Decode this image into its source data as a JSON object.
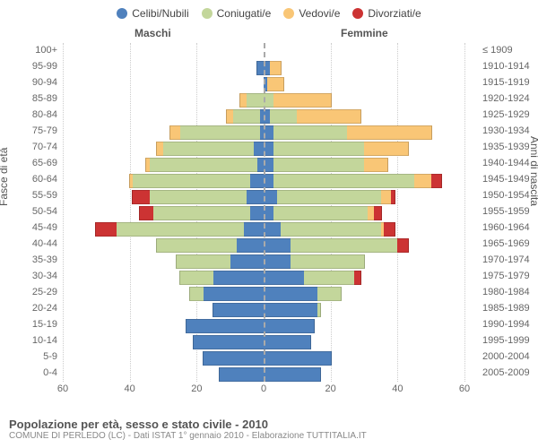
{
  "legend": [
    {
      "label": "Celibi/Nubili",
      "color": "#4f81bd"
    },
    {
      "label": "Coniugati/e",
      "color": "#c3d69b"
    },
    {
      "label": "Vedovi/e",
      "color": "#f9c676"
    },
    {
      "label": "Divorziati/e",
      "color": "#cc3333"
    }
  ],
  "headers": {
    "male": "Maschi",
    "female": "Femmine"
  },
  "axis": {
    "left_label": "Fasce di età",
    "right_label": "Anni di nascita",
    "xmax": 60,
    "ticks": [
      60,
      40,
      20,
      0,
      20,
      40,
      60
    ]
  },
  "title": "Popolazione per età, sesso e stato civile - 2010",
  "subtitle": "COMUNE DI PERLEDO (LC) - Dati ISTAT 1° gennaio 2010 - Elaborazione TUTTITALIA.IT",
  "colors": {
    "single": "#4f81bd",
    "married": "#c3d69b",
    "widowed": "#f9c676",
    "divorced": "#cc3333",
    "grid": "#cccccc",
    "center": "#aaaaaa",
    "text": "#666666"
  },
  "rows": [
    {
      "age": "100+",
      "birth": "≤ 1909",
      "m": [
        0,
        0,
        0,
        0
      ],
      "f": [
        0,
        0,
        0,
        0
      ]
    },
    {
      "age": "95-99",
      "birth": "1910-1914",
      "m": [
        2,
        0,
        0,
        0
      ],
      "f": [
        2,
        0,
        3,
        0
      ]
    },
    {
      "age": "90-94",
      "birth": "1915-1919",
      "m": [
        0,
        0,
        0,
        0
      ],
      "f": [
        1,
        0,
        5,
        0
      ]
    },
    {
      "age": "85-89",
      "birth": "1920-1924",
      "m": [
        0,
        5,
        2,
        0
      ],
      "f": [
        0,
        3,
        17,
        0
      ]
    },
    {
      "age": "80-84",
      "birth": "1925-1929",
      "m": [
        1,
        8,
        2,
        0
      ],
      "f": [
        2,
        8,
        19,
        0
      ]
    },
    {
      "age": "75-79",
      "birth": "1930-1934",
      "m": [
        1,
        24,
        3,
        0
      ],
      "f": [
        3,
        22,
        25,
        0
      ]
    },
    {
      "age": "70-74",
      "birth": "1935-1939",
      "m": [
        3,
        27,
        2,
        0
      ],
      "f": [
        3,
        27,
        13,
        0
      ]
    },
    {
      "age": "65-69",
      "birth": "1940-1944",
      "m": [
        2,
        32,
        1,
        0
      ],
      "f": [
        3,
        27,
        7,
        0
      ]
    },
    {
      "age": "60-64",
      "birth": "1945-1949",
      "m": [
        4,
        35,
        1,
        0
      ],
      "f": [
        3,
        42,
        5,
        3
      ]
    },
    {
      "age": "55-59",
      "birth": "1950-1954",
      "m": [
        5,
        29,
        0,
        5
      ],
      "f": [
        4,
        31,
        3,
        1
      ]
    },
    {
      "age": "50-54",
      "birth": "1955-1959",
      "m": [
        4,
        29,
        0,
        4
      ],
      "f": [
        3,
        28,
        2,
        2
      ]
    },
    {
      "age": "45-49",
      "birth": "1960-1964",
      "m": [
        6,
        38,
        0,
        6
      ],
      "f": [
        5,
        30,
        1,
        3
      ]
    },
    {
      "age": "40-44",
      "birth": "1965-1969",
      "m": [
        8,
        24,
        0,
        0
      ],
      "f": [
        8,
        32,
        0,
        3
      ]
    },
    {
      "age": "35-39",
      "birth": "1970-1974",
      "m": [
        10,
        16,
        0,
        0
      ],
      "f": [
        8,
        22,
        0,
        0
      ]
    },
    {
      "age": "30-34",
      "birth": "1975-1979",
      "m": [
        15,
        10,
        0,
        0
      ],
      "f": [
        12,
        15,
        0,
        2
      ]
    },
    {
      "age": "25-29",
      "birth": "1980-1984",
      "m": [
        18,
        4,
        0,
        0
      ],
      "f": [
        16,
        7,
        0,
        0
      ]
    },
    {
      "age": "20-24",
      "birth": "1985-1989",
      "m": [
        15,
        0,
        0,
        0
      ],
      "f": [
        16,
        1,
        0,
        0
      ]
    },
    {
      "age": "15-19",
      "birth": "1990-1994",
      "m": [
        23,
        0,
        0,
        0
      ],
      "f": [
        15,
        0,
        0,
        0
      ]
    },
    {
      "age": "10-14",
      "birth": "1995-1999",
      "m": [
        21,
        0,
        0,
        0
      ],
      "f": [
        14,
        0,
        0,
        0
      ]
    },
    {
      "age": "5-9",
      "birth": "2000-2004",
      "m": [
        18,
        0,
        0,
        0
      ],
      "f": [
        20,
        0,
        0,
        0
      ]
    },
    {
      "age": "0-4",
      "birth": "2005-2009",
      "m": [
        13,
        0,
        0,
        0
      ],
      "f": [
        17,
        0,
        0,
        0
      ]
    }
  ]
}
